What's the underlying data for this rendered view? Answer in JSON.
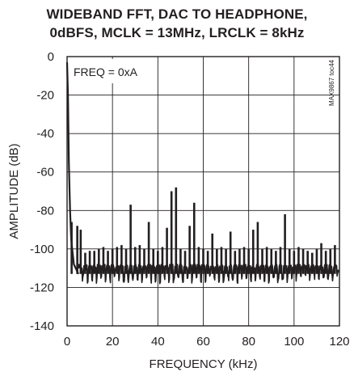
{
  "chart_data": {
    "type": "line",
    "title_lines": [
      "WIDEBAND FFT, DAC TO HEADPHONE,",
      "0dBFS, MCLK = 13MHz, LRCLK = 8kHz"
    ],
    "xlabel": "FREQUENCY (kHz)",
    "ylabel": "AMPLITUDE (dB)",
    "xlim": [
      0,
      120
    ],
    "ylim": [
      -140,
      0
    ],
    "x_ticks": [
      0,
      20,
      40,
      60,
      80,
      100,
      120
    ],
    "y_ticks": [
      0,
      -20,
      -40,
      -60,
      -80,
      -100,
      -120,
      -140
    ],
    "x_tick_labels": [
      "0",
      "20",
      "40",
      "60",
      "80",
      "100",
      "120"
    ],
    "y_tick_labels": [
      "0",
      "-20",
      "-40",
      "-60",
      "-80",
      "-100",
      "-120",
      "-140"
    ],
    "grid": true,
    "annotation": "FREQ = 0xA",
    "figure_id": "MAX9867 toc44",
    "series": [
      {
        "noise_floor_db": -115,
        "near_dc": [
          [
            0,
            -3
          ],
          [
            0.4,
            -20
          ],
          [
            0.8,
            -55
          ],
          [
            1.3,
            -80
          ],
          [
            1.8,
            -95
          ],
          [
            3,
            -108
          ],
          [
            5,
            -113
          ]
        ],
        "spurs": [
          {
            "x": 2,
            "y": -86
          },
          {
            "x": 4.5,
            "y": -88
          },
          {
            "x": 6,
            "y": -90
          },
          {
            "x": 8,
            "y": -102
          },
          {
            "x": 10,
            "y": -101
          },
          {
            "x": 12,
            "y": -101
          },
          {
            "x": 14,
            "y": -100
          },
          {
            "x": 16,
            "y": -99
          },
          {
            "x": 18,
            "y": -101
          },
          {
            "x": 20,
            "y": -100
          },
          {
            "x": 22,
            "y": -99
          },
          {
            "x": 24,
            "y": -98
          },
          {
            "x": 26,
            "y": -100
          },
          {
            "x": 28,
            "y": -77
          },
          {
            "x": 30,
            "y": -99
          },
          {
            "x": 32,
            "y": -98
          },
          {
            "x": 34,
            "y": -100
          },
          {
            "x": 36,
            "y": -86
          },
          {
            "x": 38,
            "y": -100
          },
          {
            "x": 40,
            "y": -101
          },
          {
            "x": 42,
            "y": -99
          },
          {
            "x": 44,
            "y": -89
          },
          {
            "x": 46,
            "y": -70
          },
          {
            "x": 48,
            "y": -68
          },
          {
            "x": 50,
            "y": -100
          },
          {
            "x": 52,
            "y": -101
          },
          {
            "x": 54,
            "y": -88
          },
          {
            "x": 56,
            "y": -76
          },
          {
            "x": 58,
            "y": -99
          },
          {
            "x": 60,
            "y": -100
          },
          {
            "x": 62,
            "y": -101
          },
          {
            "x": 64,
            "y": -92
          },
          {
            "x": 66,
            "y": -100
          },
          {
            "x": 68,
            "y": -99
          },
          {
            "x": 70,
            "y": -100
          },
          {
            "x": 72,
            "y": -91
          },
          {
            "x": 74,
            "y": -101
          },
          {
            "x": 76,
            "y": -100
          },
          {
            "x": 78,
            "y": -99
          },
          {
            "x": 80,
            "y": -100
          },
          {
            "x": 82,
            "y": -90
          },
          {
            "x": 84,
            "y": -86
          },
          {
            "x": 86,
            "y": -100
          },
          {
            "x": 88,
            "y": -99
          },
          {
            "x": 90,
            "y": -100
          },
          {
            "x": 92,
            "y": -101
          },
          {
            "x": 94,
            "y": -99
          },
          {
            "x": 96,
            "y": -82
          },
          {
            "x": 98,
            "y": -100
          },
          {
            "x": 100,
            "y": -101
          },
          {
            "x": 102,
            "y": -99
          },
          {
            "x": 104,
            "y": -100
          },
          {
            "x": 106,
            "y": -101
          },
          {
            "x": 108,
            "y": -102
          },
          {
            "x": 110,
            "y": -100
          },
          {
            "x": 112,
            "y": -97
          },
          {
            "x": 114,
            "y": -101
          },
          {
            "x": 116,
            "y": -100
          },
          {
            "x": 118,
            "y": -98
          }
        ]
      }
    ]
  }
}
